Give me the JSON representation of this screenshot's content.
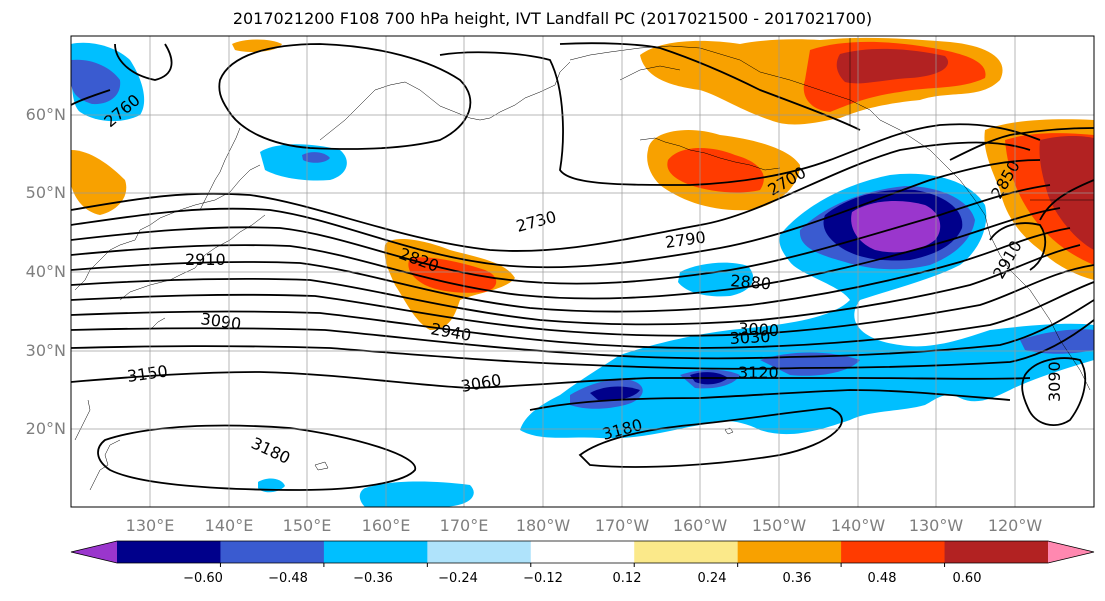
{
  "title": "2017021200 F108 700 hPa height, IVT Landfall PC (2017021500 - 2017021700)",
  "latitude_labels": [
    "60°N",
    "50°N",
    "40°N",
    "30°N",
    "20°N"
  ],
  "longitude_labels": [
    "130°E",
    "140°E",
    "150°E",
    "160°E",
    "170°E",
    "180°W",
    "170°W",
    "160°W",
    "150°W",
    "140°W",
    "130°W",
    "120°W"
  ],
  "colorbar": {
    "tick_labels": [
      "−0.60",
      "−0.48",
      "−0.36",
      "−0.24",
      "−0.12",
      "0.12",
      "0.24",
      "0.36",
      "0.48",
      "0.60"
    ],
    "colors": [
      "#9a36cd",
      "#00008b",
      "#3a5bd0",
      "#00bfff",
      "#afe3fb",
      "#ffffff",
      "#fbe98a",
      "#f8a100",
      "#ff3b00",
      "#b22222",
      "#ff88b0"
    ]
  },
  "contour_labels": [
    "2760",
    "2910",
    "3090",
    "3150",
    "3180",
    "2820",
    "2940",
    "3060",
    "2730",
    "2790",
    "2700",
    "2880",
    "3000",
    "3030",
    "3120",
    "3180",
    "2910",
    "3090",
    "2850"
  ]
}
